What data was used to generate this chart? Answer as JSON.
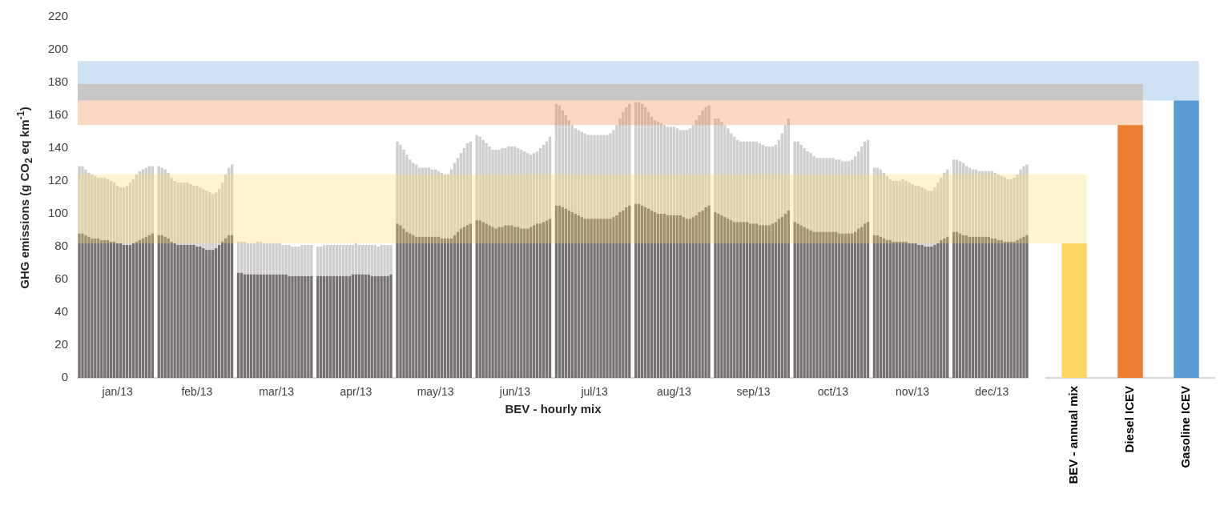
{
  "chart_data": [
    {
      "type": "bar",
      "stacked": true,
      "xlabel": "BEV - hourly mix",
      "ylabel": "GHG emissions (g CO$_{2}$ eq km$^{-1}$)",
      "categories": [
        null,
        null,
        null,
        null,
        null,
        null,
        null,
        null,
        null,
        null,
        null,
        null,
        "jan/13",
        null,
        null,
        null,
        null,
        null,
        null,
        null,
        null,
        null,
        null,
        null,
        null,
        null,
        null,
        null,
        null,
        null,
        null,
        null,
        null,
        null,
        null,
        null,
        null,
        "feb/13",
        null,
        null,
        null,
        null,
        null,
        null,
        null,
        null,
        null,
        null,
        null,
        null,
        null,
        null,
        null,
        null,
        null,
        null,
        null,
        null,
        null,
        null,
        null,
        null,
        "mar/13",
        null,
        null,
        null,
        null,
        null,
        null,
        null,
        null,
        null,
        null,
        null,
        null,
        null,
        null,
        null,
        null,
        null,
        null,
        null,
        null,
        null,
        null,
        null,
        null,
        "apr/13",
        null,
        null,
        null,
        null,
        null,
        null,
        null,
        null,
        null,
        null,
        null,
        null,
        null,
        null,
        null,
        null,
        null,
        null,
        null,
        null,
        null,
        null,
        null,
        null,
        "may/13",
        null,
        null,
        null,
        null,
        null,
        null,
        null,
        null,
        null,
        null,
        null,
        null,
        null,
        null,
        null,
        null,
        null,
        null,
        null,
        null,
        null,
        null,
        null,
        null,
        "jun/13",
        null,
        null,
        null,
        null,
        null,
        null,
        null,
        null,
        null,
        null,
        null,
        null,
        null,
        null,
        null,
        null,
        null,
        null,
        null,
        null,
        null,
        null,
        null,
        null,
        "jul/13",
        null,
        null,
        null,
        null,
        null,
        null,
        null,
        null,
        null,
        null,
        null,
        null,
        null,
        null,
        null,
        null,
        null,
        null,
        null,
        null,
        null,
        null,
        null,
        null,
        "aug/13",
        null,
        null,
        null,
        null,
        null,
        null,
        null,
        null,
        null,
        null,
        null,
        null,
        null,
        null,
        null,
        null,
        null,
        null,
        null,
        null,
        null,
        null,
        null,
        null,
        "sep/13",
        null,
        null,
        null,
        null,
        null,
        null,
        null,
        null,
        null,
        null,
        null,
        null,
        null,
        null,
        null,
        null,
        null,
        null,
        null,
        null,
        null,
        null,
        null,
        null,
        "oct/13",
        null,
        null,
        null,
        null,
        null,
        null,
        null,
        null,
        null,
        null,
        null,
        null,
        null,
        null,
        null,
        null,
        null,
        null,
        null,
        null,
        null,
        null,
        null,
        null,
        "nov/13",
        null,
        null,
        null,
        null,
        null,
        null,
        null,
        null,
        null,
        null,
        null,
        null,
        null,
        null,
        null,
        null,
        null,
        null,
        null,
        null,
        null,
        null,
        null,
        null,
        "dec/13",
        null,
        null,
        null,
        null,
        null,
        null,
        null,
        null,
        null,
        null,
        null
      ],
      "series": [
        {
          "color": "#767171",
          "values": [
            88,
            88,
            87,
            86,
            85,
            85,
            85,
            84,
            84,
            84,
            83,
            83,
            82,
            82,
            81,
            81,
            81,
            82,
            83,
            84,
            85,
            86,
            87,
            88,
            null,
            87,
            87,
            86,
            85,
            83,
            82,
            81,
            81,
            81,
            81,
            81,
            81,
            80,
            80,
            79,
            78,
            78,
            78,
            79,
            81,
            83,
            85,
            87,
            87,
            null,
            64,
            64,
            63,
            63,
            63,
            63,
            63,
            63,
            63,
            63,
            63,
            63,
            63,
            63,
            63,
            63,
            62,
            62,
            62,
            62,
            62,
            62,
            62,
            62,
            null,
            62,
            62,
            62,
            62,
            62,
            62,
            62,
            62,
            62,
            62,
            62,
            63,
            63,
            63,
            63,
            63,
            63,
            62,
            62,
            62,
            62,
            62,
            62,
            63,
            null,
            94,
            93,
            91,
            89,
            88,
            87,
            86,
            86,
            86,
            86,
            86,
            86,
            86,
            86,
            85,
            85,
            85,
            85,
            87,
            89,
            91,
            92,
            93,
            94,
            null,
            96,
            96,
            95,
            94,
            93,
            92,
            91,
            92,
            92,
            93,
            93,
            93,
            92,
            92,
            91,
            91,
            91,
            92,
            93,
            94,
            94,
            95,
            96,
            97,
            null,
            105,
            105,
            104,
            103,
            102,
            101,
            100,
            99,
            98,
            97,
            97,
            97,
            97,
            97,
            97,
            97,
            97,
            97,
            98,
            99,
            101,
            102,
            104,
            105,
            null,
            106,
            106,
            105,
            104,
            103,
            102,
            101,
            100,
            100,
            100,
            99,
            99,
            99,
            99,
            99,
            98,
            97,
            97,
            98,
            99,
            101,
            102,
            104,
            105,
            null,
            101,
            100,
            99,
            98,
            97,
            96,
            95,
            95,
            95,
            95,
            95,
            94,
            94,
            94,
            93,
            93,
            93,
            93,
            94,
            95,
            97,
            98,
            100,
            102,
            null,
            95,
            94,
            93,
            92,
            91,
            90,
            89,
            89,
            89,
            89,
            89,
            89,
            89,
            89,
            88,
            88,
            88,
            88,
            88,
            89,
            91,
            92,
            94,
            95,
            null,
            87,
            87,
            86,
            85,
            84,
            84,
            83,
            83,
            83,
            83,
            83,
            82,
            82,
            82,
            81,
            81,
            80,
            80,
            80,
            81,
            82,
            84,
            85,
            86,
            null,
            89,
            89,
            88,
            87,
            87,
            86,
            86,
            86,
            86,
            86,
            86,
            86,
            85,
            85,
            84,
            84,
            83,
            83,
            83,
            83,
            84,
            85,
            86,
            87
          ]
        },
        {
          "color": "#d0cece",
          "values": [
            41,
            41,
            40,
            39,
            39,
            38,
            37,
            38,
            38,
            37,
            37,
            36,
            35,
            34,
            35,
            36,
            38,
            39,
            41,
            42,
            42,
            42,
            42,
            41,
            null,
            42,
            41,
            41,
            40,
            39,
            38,
            38,
            38,
            38,
            38,
            37,
            36,
            37,
            36,
            36,
            36,
            35,
            34,
            34,
            34,
            36,
            39,
            41,
            43,
            null,
            19,
            19,
            20,
            19,
            19,
            19,
            20,
            20,
            19,
            19,
            19,
            19,
            19,
            19,
            18,
            18,
            19,
            18,
            18,
            18,
            19,
            19,
            19,
            19,
            null,
            18,
            18,
            19,
            19,
            19,
            19,
            19,
            19,
            19,
            19,
            19,
            18,
            19,
            18,
            18,
            18,
            18,
            19,
            19,
            18,
            19,
            19,
            19,
            18,
            null,
            50,
            49,
            48,
            47,
            45,
            44,
            44,
            42,
            42,
            42,
            42,
            41,
            41,
            40,
            40,
            39,
            39,
            42,
            44,
            45,
            46,
            48,
            50,
            50,
            null,
            52,
            51,
            50,
            49,
            48,
            47,
            48,
            47,
            48,
            47,
            48,
            48,
            49,
            48,
            48,
            47,
            46,
            44,
            44,
            44,
            46,
            47,
            48,
            50,
            null,
            62,
            61,
            59,
            57,
            55,
            53,
            52,
            52,
            52,
            52,
            51,
            51,
            51,
            51,
            51,
            51,
            51,
            52,
            53,
            55,
            57,
            60,
            61,
            62,
            null,
            62,
            62,
            62,
            61,
            59,
            57,
            56,
            56,
            55,
            54,
            54,
            54,
            54,
            53,
            52,
            53,
            54,
            55,
            56,
            58,
            59,
            61,
            61,
            61,
            null,
            57,
            58,
            57,
            56,
            55,
            53,
            52,
            50,
            49,
            49,
            49,
            50,
            50,
            50,
            50,
            49,
            48,
            48,
            47,
            47,
            48,
            51,
            54,
            56,
            null,
            49,
            50,
            49,
            48,
            47,
            47,
            46,
            45,
            45,
            45,
            45,
            45,
            45,
            44,
            45,
            44,
            44,
            44,
            45,
            46,
            47,
            49,
            50,
            50,
            null,
            41,
            41,
            41,
            40,
            39,
            37,
            37,
            37,
            37,
            38,
            37,
            37,
            36,
            35,
            36,
            35,
            35,
            34,
            34,
            35,
            37,
            38,
            40,
            41,
            null,
            44,
            44,
            44,
            44,
            42,
            42,
            41,
            41,
            40,
            40,
            40,
            40,
            41,
            40,
            40,
            39,
            39,
            38,
            38,
            39,
            40,
            42,
            43,
            43
          ]
        }
      ],
      "ylim": [
        0,
        220
      ],
      "yticks": [
        0,
        20,
        40,
        60,
        80,
        100,
        120,
        140,
        160,
        180,
        200,
        220
      ],
      "bands": [
        {
          "axis": "y",
          "from": 82,
          "to": 124,
          "color": "#ffd966"
        },
        {
          "axis": "y",
          "from": 154,
          "to": 179,
          "color": "#ed7d31"
        },
        {
          "axis": "y",
          "from": 169,
          "to": 193,
          "color": "#5b9bd5"
        }
      ]
    },
    {
      "type": "bar",
      "categories": [
        "BEV - annual mix",
        "Diesel ICEV",
        "Gasoline ICEV"
      ],
      "values": [
        82,
        154,
        169
      ],
      "colors": [
        "#fdd865",
        "#ed7d31",
        "#5b9bd5"
      ],
      "ylim": [
        0,
        220
      ],
      "yticks": [
        0,
        20,
        40,
        60,
        80,
        100,
        120,
        140,
        160,
        180,
        200,
        220
      ],
      "tick_labels": "x",
      "bands": [
        {
          "axis": "y",
          "from": 82,
          "to": 124,
          "color": "#ffd966"
        },
        {
          "axis": "y",
          "from": 154,
          "to": 179,
          "color": "#ed7d31"
        },
        {
          "axis": "y",
          "from": 169,
          "to": 193,
          "color": "#5b9bd5"
        }
      ]
    }
  ]
}
